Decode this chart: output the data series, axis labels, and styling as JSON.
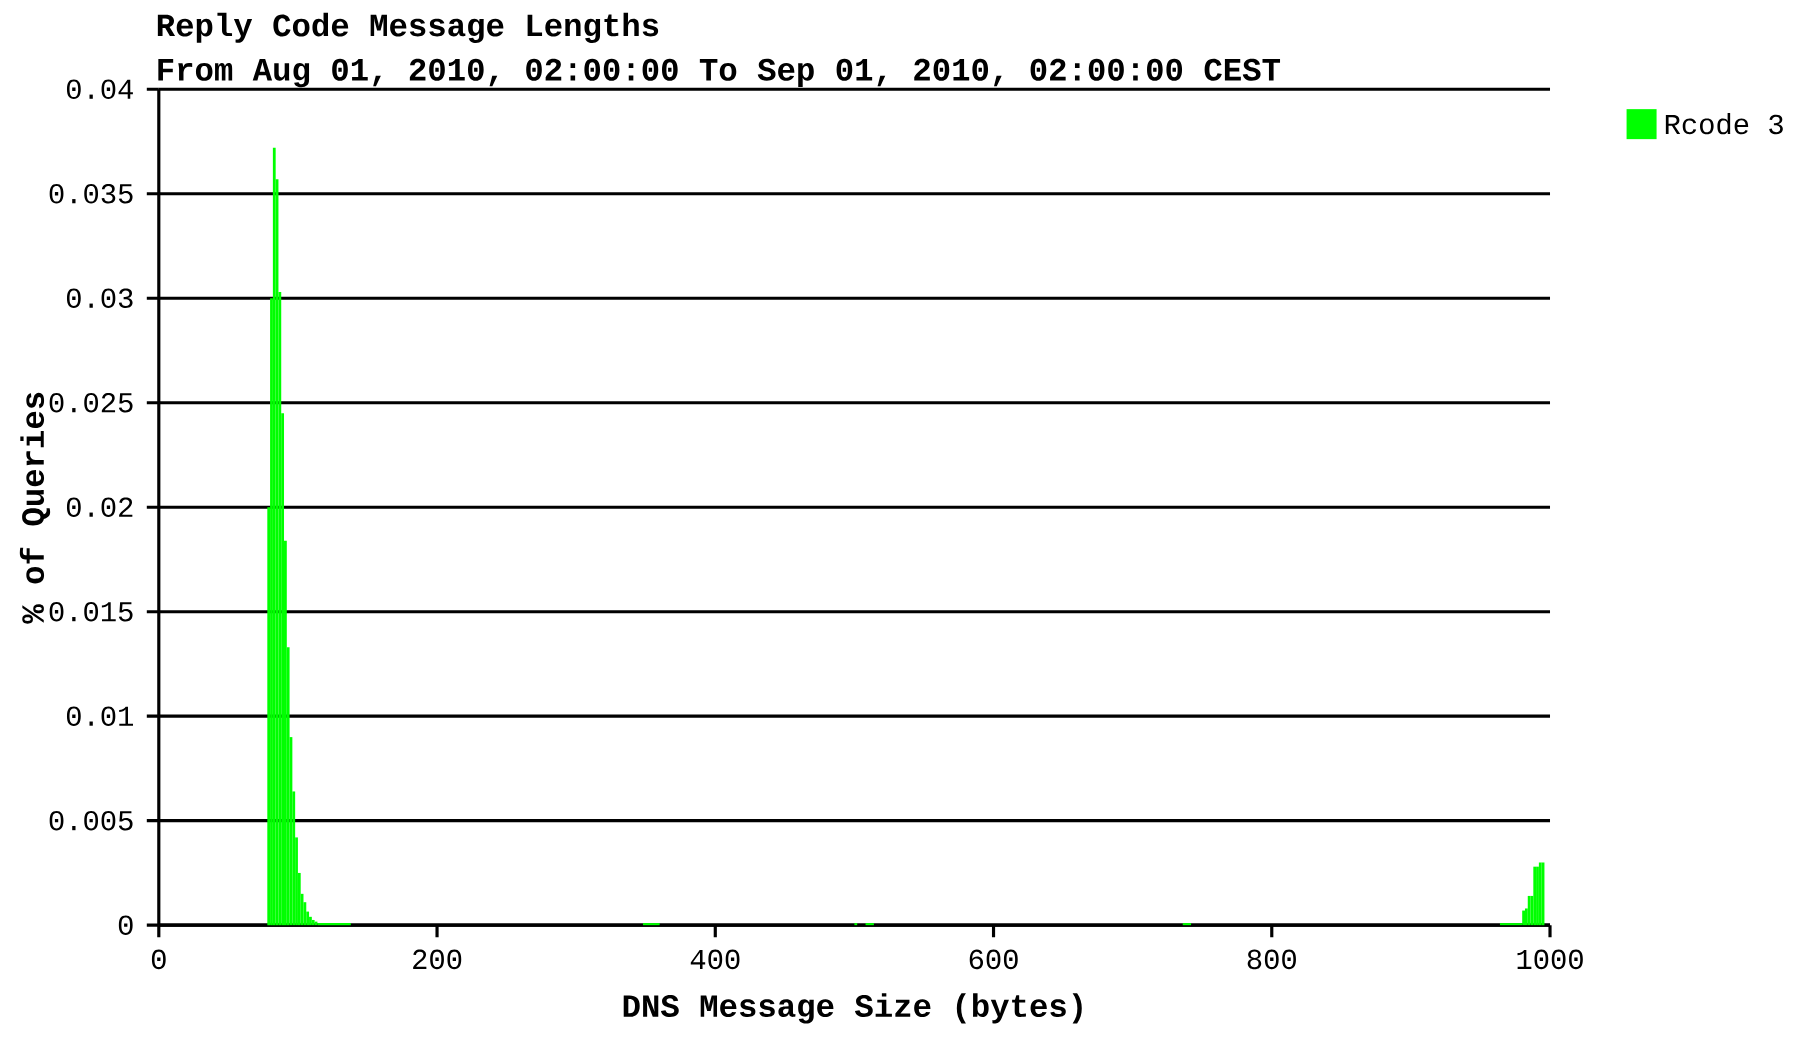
{
  "chart_data": {
    "type": "histogram",
    "title": "Reply Code Message Lengths",
    "subtitle": "From Aug 01, 2010, 02:00:00 To Sep 01, 2010, 02:00:00 CEST",
    "xlabel": "DNS Message Size (bytes)",
    "ylabel": "% of Queries",
    "bins": [
      78,
      80,
      82,
      84,
      86,
      88,
      90,
      92,
      94,
      96,
      98,
      100,
      102,
      104,
      106,
      108,
      110,
      112,
      114,
      138,
      348,
      360,
      500,
      502,
      508,
      514,
      736,
      742,
      964,
      980,
      982,
      984,
      986,
      988,
      990,
      992,
      994,
      996
    ],
    "series": [
      {
        "name": "Rcode 3",
        "color": "#00ff00",
        "values": [
          0.02,
          0.03,
          0.0372,
          0.0357,
          0.0303,
          0.0245,
          0.0184,
          0.0133,
          0.009,
          0.0064,
          0.0042,
          0.0025,
          0.0015,
          0.0011,
          0.00065,
          0.0004,
          0.00025,
          0.00017,
          0.0001,
          0,
          0.0001,
          0,
          0.0001,
          0,
          0.0001,
          0,
          0.0001,
          0,
          0.0001,
          0.0007,
          0.0008,
          0.0014,
          0.0014,
          0.0028,
          0.0028,
          0.003,
          0.003
        ]
      }
    ],
    "xlim": [
      0,
      1000
    ],
    "xticks": [
      0,
      200,
      400,
      600,
      800,
      1000
    ],
    "ylim": [
      0,
      0.04
    ],
    "yticks": [
      0,
      0.005,
      0.01,
      0.015,
      0.02,
      0.025,
      0.03,
      0.035,
      0.04
    ],
    "grid": "y",
    "legend": "top right"
  }
}
